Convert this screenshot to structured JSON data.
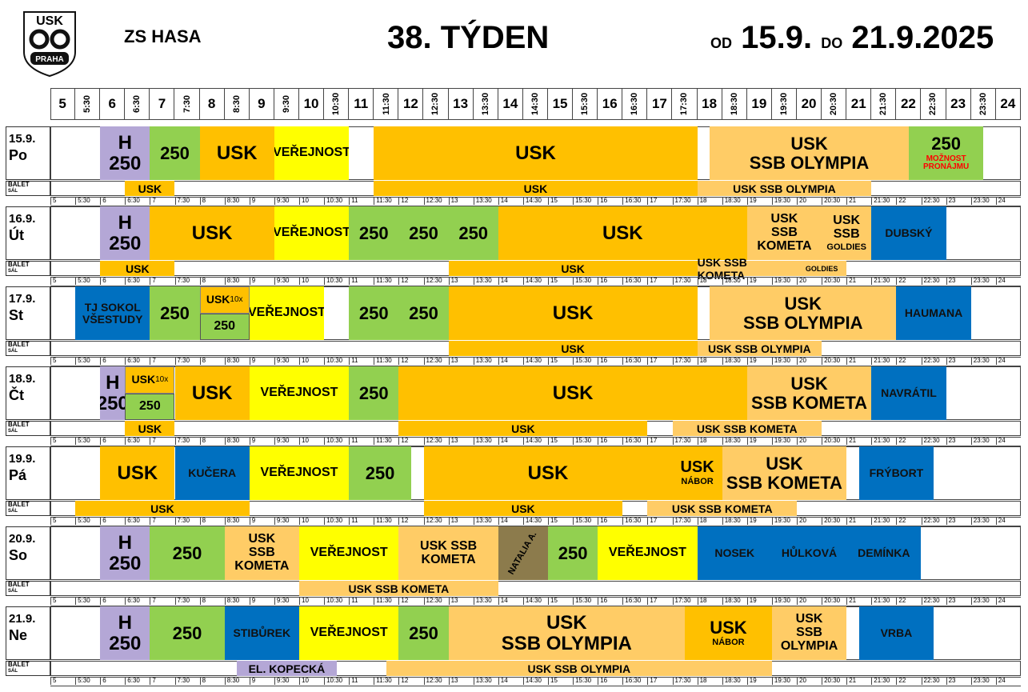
{
  "header": {
    "logo_text": "USK PRAHA",
    "venue": "ZS HASA",
    "week": "38. TÝDEN",
    "od_label": "OD",
    "date_from": "15.9.",
    "do_label": "DO",
    "date_to": "21.9.2025"
  },
  "colors": {
    "usk": "#FFC000",
    "usk_ssb": "#FFCC66",
    "skupina_250": "#92D050",
    "verejnost": "#FFFF00",
    "h250": "#B4A7D6",
    "blue": "#0070C0",
    "natalia": "#8C7B4C",
    "red_note": "#FF0000"
  },
  "time_labels": [
    "5",
    "5:30",
    "6",
    "6:30",
    "7",
    "7:30",
    "8",
    "8:30",
    "9",
    "9:30",
    "10",
    "10:30",
    "11",
    "11:30",
    "12",
    "12:30",
    "13",
    "13:30",
    "14",
    "14:30",
    "15",
    "15:30",
    "16",
    "16:30",
    "17",
    "17:30",
    "18",
    "18:30",
    "19",
    "19:30",
    "20",
    "20:30",
    "21",
    "21:30",
    "22",
    "22:30",
    "23",
    "23:30",
    "24"
  ],
  "balet_label": "BALET",
  "sal_label": "SÁL",
  "days": [
    {
      "date": "15.9.",
      "name": "Po",
      "blocks": [
        {
          "s": 2,
          "e": 4,
          "lines": [
            "H",
            "250"
          ],
          "c": "h250",
          "fs": 24
        },
        {
          "s": 4,
          "e": 6,
          "lines": [
            "250"
          ],
          "c": "skupina_250",
          "fs": 22
        },
        {
          "s": 6,
          "e": 9,
          "lines": [
            "USK"
          ],
          "c": "usk",
          "fs": 24
        },
        {
          "s": 9,
          "e": 12,
          "lines": [
            "VEŘEJNOST"
          ],
          "c": "verejnost",
          "fs": 16
        },
        {
          "s": 13,
          "e": 26,
          "lines": [
            "USK"
          ],
          "c": "usk",
          "fs": 24
        },
        {
          "s": 26.5,
          "e": 34.5,
          "lines": [
            "USK",
            "SSB OLYMPIA"
          ],
          "c": "usk_ssb",
          "fs": 22
        },
        {
          "s": 34.5,
          "e": 37.5,
          "lines": [
            "250"
          ],
          "c": "skupina_250",
          "fs": 22,
          "note": "MOŽNOST PRONÁJMU"
        }
      ],
      "balet": [
        {
          "s": 3,
          "e": 5,
          "t": "USK",
          "c": "usk"
        },
        {
          "s": 13,
          "e": 26,
          "t": "USK",
          "c": "usk"
        },
        {
          "s": 26,
          "e": 33,
          "t": "USK SSB OLYMPIA",
          "c": "usk_ssb"
        }
      ]
    },
    {
      "date": "16.9.",
      "name": "Út",
      "blocks": [
        {
          "s": 2,
          "e": 4,
          "lines": [
            "H",
            "250"
          ],
          "c": "h250",
          "fs": 24
        },
        {
          "s": 4,
          "e": 9,
          "lines": [
            "USK"
          ],
          "c": "usk",
          "fs": 24
        },
        {
          "s": 9,
          "e": 12,
          "lines": [
            "VEŘEJNOST"
          ],
          "c": "verejnost",
          "fs": 16
        },
        {
          "s": 12,
          "e": 14,
          "lines": [
            "250"
          ],
          "c": "skupina_250",
          "fs": 22
        },
        {
          "s": 14,
          "e": 16,
          "lines": [
            "250"
          ],
          "c": "skupina_250",
          "fs": 22
        },
        {
          "s": 16,
          "e": 18,
          "lines": [
            "250"
          ],
          "c": "skupina_250",
          "fs": 22
        },
        {
          "s": 18,
          "e": 28,
          "lines": [
            "USK"
          ],
          "c": "usk",
          "fs": 24
        },
        {
          "s": 28,
          "e": 31,
          "lines": [
            "USK",
            "SSB",
            "KOMETA"
          ],
          "c": "usk_ssb",
          "fs": 16
        },
        {
          "s": 31,
          "e": 33,
          "lines": [
            "USK",
            "SSB"
          ],
          "c": "usk_ssb",
          "fs": 16,
          "small": "GOLDIES"
        },
        {
          "s": 33,
          "e": 36,
          "lines": [
            "DUBSKÝ"
          ],
          "c": "blue",
          "fs": 14
        }
      ],
      "balet": [
        {
          "s": 2,
          "e": 5,
          "t": "USK",
          "c": "usk"
        },
        {
          "s": 16,
          "e": 26,
          "t": "USK",
          "c": "usk"
        },
        {
          "s": 26,
          "e": 30,
          "t": "USK SSB KOMETA",
          "c": "usk_ssb"
        },
        {
          "s": 30,
          "e": 32,
          "t": "GOLDIES",
          "c": "usk_ssb",
          "small": true
        }
      ]
    },
    {
      "date": "17.9.",
      "name": "St",
      "blocks": [
        {
          "s": 1,
          "e": 4,
          "lines": [
            "TJ SOKOL",
            "VŠESTUDY"
          ],
          "c": "blue",
          "fs": 14
        },
        {
          "s": 4,
          "e": 6,
          "lines": [
            "250"
          ],
          "c": "skupina_250",
          "fs": 22
        },
        {
          "s": 6,
          "e": 8,
          "lines": [
            "USK"
          ],
          "c": "usk",
          "fs": 14,
          "split": "250",
          "sup": "10x"
        },
        {
          "s": 8,
          "e": 11,
          "lines": [
            "VEŘEJNOST"
          ],
          "c": "verejnost",
          "fs": 16
        },
        {
          "s": 12,
          "e": 14,
          "lines": [
            "250"
          ],
          "c": "skupina_250",
          "fs": 22
        },
        {
          "s": 14,
          "e": 16,
          "lines": [
            "250"
          ],
          "c": "skupina_250",
          "fs": 22
        },
        {
          "s": 16,
          "e": 26,
          "lines": [
            "USK"
          ],
          "c": "usk",
          "fs": 24
        },
        {
          "s": 26.5,
          "e": 34,
          "lines": [
            "USK",
            "SSB OLYMPIA"
          ],
          "c": "usk_ssb",
          "fs": 22
        },
        {
          "s": 34,
          "e": 37,
          "lines": [
            "HAUMANA"
          ],
          "c": "blue",
          "fs": 14
        }
      ],
      "balet": [
        {
          "s": 16,
          "e": 26,
          "t": "USK",
          "c": "usk"
        },
        {
          "s": 26,
          "e": 31,
          "t": "USK SSB OLYMPIA",
          "c": "usk_ssb"
        }
      ]
    },
    {
      "date": "18.9.",
      "name": "Čt",
      "blocks": [
        {
          "s": 2,
          "e": 3,
          "lines": [
            "H",
            "250"
          ],
          "c": "h250",
          "fs": 24
        },
        {
          "s": 3,
          "e": 5,
          "lines": [
            "USK"
          ],
          "c": "usk",
          "fs": 14,
          "split": "250",
          "sup": "10x"
        },
        {
          "s": 5,
          "e": 8,
          "lines": [
            "USK"
          ],
          "c": "usk",
          "fs": 24
        },
        {
          "s": 8,
          "e": 12,
          "lines": [
            "VEŘEJNOST"
          ],
          "c": "verejnost",
          "fs": 16
        },
        {
          "s": 12,
          "e": 14,
          "lines": [
            "250"
          ],
          "c": "skupina_250",
          "fs": 22
        },
        {
          "s": 14,
          "e": 28,
          "lines": [
            "USK"
          ],
          "c": "usk",
          "fs": 24
        },
        {
          "s": 28,
          "e": 33,
          "lines": [
            "USK",
            "SSB KOMETA"
          ],
          "c": "usk_ssb",
          "fs": 22
        },
        {
          "s": 33,
          "e": 36,
          "lines": [
            "NAVRÁTIL"
          ],
          "c": "blue",
          "fs": 14
        }
      ],
      "balet": [
        {
          "s": 3,
          "e": 5,
          "t": "USK",
          "c": "usk"
        },
        {
          "s": 14,
          "e": 24,
          "t": "USK",
          "c": "usk"
        },
        {
          "s": 25,
          "e": 31,
          "t": "USK SSB KOMETA",
          "c": "usk_ssb"
        }
      ]
    },
    {
      "date": "19.9.",
      "name": "Pá",
      "blocks": [
        {
          "s": 2,
          "e": 5,
          "lines": [
            "USK"
          ],
          "c": "usk",
          "fs": 24
        },
        {
          "s": 5,
          "e": 8,
          "lines": [
            "KUČERA"
          ],
          "c": "blue",
          "fs": 14
        },
        {
          "s": 8,
          "e": 12,
          "lines": [
            "VEŘEJNOST"
          ],
          "c": "verejnost",
          "fs": 16
        },
        {
          "s": 12,
          "e": 14.5,
          "lines": [
            "250"
          ],
          "c": "skupina_250",
          "fs": 22
        },
        {
          "s": 15,
          "e": 25,
          "lines": [
            "USK"
          ],
          "c": "usk",
          "fs": 24
        },
        {
          "s": 25,
          "e": 27,
          "lines": [
            "USK"
          ],
          "c": "usk",
          "fs": 20,
          "small": "NÁBOR"
        },
        {
          "s": 27,
          "e": 32,
          "lines": [
            "USK",
            "SSB KOMETA"
          ],
          "c": "usk_ssb",
          "fs": 22
        },
        {
          "s": 32.5,
          "e": 35.5,
          "lines": [
            "FRÝBORT"
          ],
          "c": "blue",
          "fs": 14
        }
      ],
      "balet": [
        {
          "s": 1,
          "e": 8,
          "t": "USK",
          "c": "usk"
        },
        {
          "s": 15,
          "e": 23,
          "t": "USK",
          "c": "usk"
        },
        {
          "s": 24,
          "e": 30,
          "t": "USK SSB KOMETA",
          "c": "usk_ssb"
        }
      ]
    },
    {
      "date": "20.9.",
      "name": "So",
      "blocks": [
        {
          "s": 2,
          "e": 4,
          "lines": [
            "H",
            "250"
          ],
          "c": "h250",
          "fs": 24
        },
        {
          "s": 4,
          "e": 7,
          "lines": [
            "250"
          ],
          "c": "skupina_250",
          "fs": 22
        },
        {
          "s": 7,
          "e": 10,
          "lines": [
            "USK",
            "SSB",
            "KOMETA"
          ],
          "c": "usk_ssb",
          "fs": 16
        },
        {
          "s": 10,
          "e": 14,
          "lines": [
            "VEŘEJNOST"
          ],
          "c": "verejnost",
          "fs": 16
        },
        {
          "s": 14,
          "e": 18,
          "lines": [
            "USK SSB",
            "KOMETA"
          ],
          "c": "usk_ssb",
          "fs": 16
        },
        {
          "s": 18,
          "e": 20,
          "lines": [
            "NATALIA A."
          ],
          "c": "natalia",
          "fs": 11,
          "rot": true
        },
        {
          "s": 20,
          "e": 22,
          "lines": [
            "250"
          ],
          "c": "skupina_250",
          "fs": 22
        },
        {
          "s": 22,
          "e": 26,
          "lines": [
            "VEŘEJNOST"
          ],
          "c": "verejnost",
          "fs": 16
        },
        {
          "s": 26,
          "e": 29,
          "lines": [
            "NOSEK"
          ],
          "c": "blue",
          "fs": 14
        },
        {
          "s": 29,
          "e": 32,
          "lines": [
            "HŮLKOVÁ"
          ],
          "c": "blue",
          "fs": 14
        },
        {
          "s": 32,
          "e": 35,
          "lines": [
            "DEMÍNKA"
          ],
          "c": "blue",
          "fs": 14
        }
      ],
      "balet": [
        {
          "s": 10,
          "e": 18,
          "t": "USK SSB KOMETA",
          "c": "usk_ssb"
        }
      ]
    },
    {
      "date": "21.9.",
      "name": "Ne",
      "blocks": [
        {
          "s": 2,
          "e": 4,
          "lines": [
            "H",
            "250"
          ],
          "c": "h250",
          "fs": 24
        },
        {
          "s": 4,
          "e": 7,
          "lines": [
            "250"
          ],
          "c": "skupina_250",
          "fs": 22
        },
        {
          "s": 7,
          "e": 10,
          "lines": [
            "STIBŮREK"
          ],
          "c": "blue",
          "fs": 14
        },
        {
          "s": 10,
          "e": 14,
          "lines": [
            "VEŘEJNOST"
          ],
          "c": "verejnost",
          "fs": 16
        },
        {
          "s": 14,
          "e": 16,
          "lines": [
            "250"
          ],
          "c": "skupina_250",
          "fs": 22
        },
        {
          "s": 16,
          "e": 25.5,
          "lines": [
            "USK",
            "SSB OLYMPIA"
          ],
          "c": "usk_ssb",
          "fs": 24
        },
        {
          "s": 25.5,
          "e": 29,
          "lines": [
            "USK"
          ],
          "c": "usk",
          "fs": 22,
          "small": "NÁBOR"
        },
        {
          "s": 29,
          "e": 32,
          "lines": [
            "USK",
            "SSB",
            "OLYMPIA"
          ],
          "c": "usk_ssb",
          "fs": 16
        },
        {
          "s": 32.5,
          "e": 35.5,
          "lines": [
            "VRBA"
          ],
          "c": "blue",
          "fs": 14
        }
      ],
      "balet": [
        {
          "s": 7.5,
          "e": 11.5,
          "t": "EL. KOPECKÁ",
          "c": "h250"
        },
        {
          "s": 13.5,
          "e": 29,
          "t": "USK SSB OLYMPIA",
          "c": "usk_ssb"
        }
      ]
    }
  ]
}
